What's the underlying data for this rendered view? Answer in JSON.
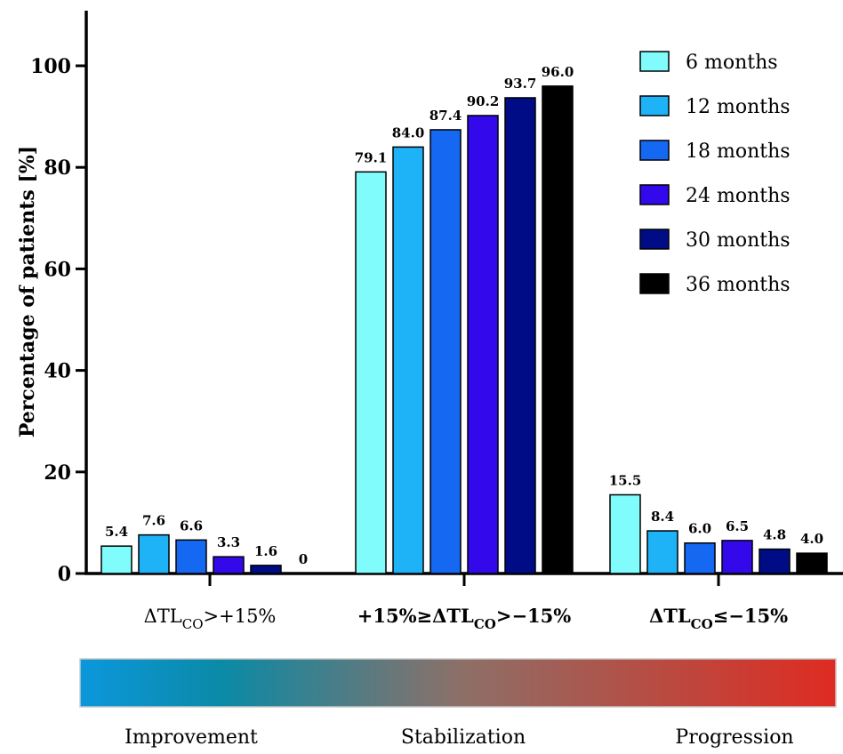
{
  "chart_data": {
    "type": "bar",
    "ylabel": "Percentage of patients [%]",
    "ylim": [
      0,
      110
    ],
    "yticks": [
      0,
      20,
      40,
      60,
      80,
      100
    ],
    "grid": false,
    "legend_position": "top-right",
    "categories": [
      {
        "main": "ΔTL",
        "sub": "CO",
        "tail": ">+15%",
        "bold": false
      },
      {
        "main": "+15%≥ΔTL",
        "sub": "CO",
        "tail": ">−15%",
        "bold": true
      },
      {
        "main": "ΔTL",
        "sub": "CO",
        "tail": "≤−15%",
        "bold": true
      }
    ],
    "series": [
      {
        "name": "6 months",
        "color": "#7ffcfb",
        "values": [
          5.4,
          79.1,
          15.5
        ],
        "labels": [
          "5.4",
          "79.1",
          "15.5"
        ]
      },
      {
        "name": "12 months",
        "color": "#1eb2f6",
        "values": [
          7.6,
          84.0,
          8.4
        ],
        "labels": [
          "7.6",
          "84.0",
          "8.4"
        ]
      },
      {
        "name": "18 months",
        "color": "#1468f2",
        "values": [
          6.6,
          87.4,
          6.0
        ],
        "labels": [
          "6.6",
          "87.4",
          "6.0"
        ]
      },
      {
        "name": "24 months",
        "color": "#3308ea",
        "values": [
          3.3,
          90.2,
          6.5
        ],
        "labels": [
          "3.3",
          "90.2",
          "6.5"
        ]
      },
      {
        "name": "30 months",
        "color": "#000c85",
        "values": [
          1.6,
          93.7,
          4.8
        ],
        "labels": [
          "1.6",
          "93.7",
          "4.8"
        ]
      },
      {
        "name": "36 months",
        "color": "#000000",
        "values": [
          0,
          96.0,
          4.0
        ],
        "labels": [
          "0",
          "96.0",
          "4.0"
        ]
      }
    ],
    "band": {
      "labels": [
        "Improvement",
        "Stabilization",
        "Progression"
      ],
      "colors": [
        "#0b97dc",
        "#0b8aa6",
        "#8c7068",
        "#df2b21"
      ]
    }
  }
}
